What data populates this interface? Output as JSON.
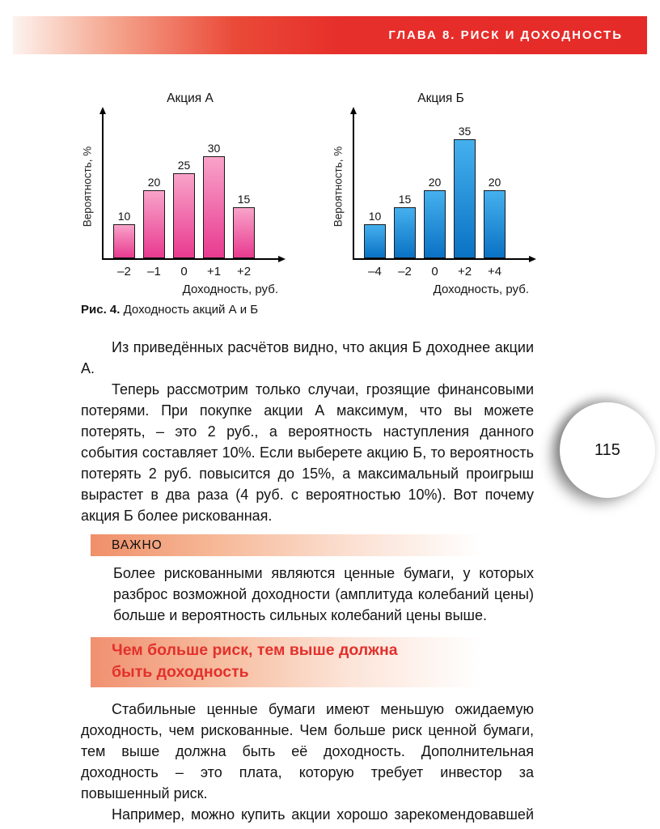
{
  "header": {
    "text": "ГЛАВА 8. РИСК И ДОХОДНОСТЬ"
  },
  "page_number": "115",
  "figure": {
    "caption_label": "Рис. 4.",
    "caption_text": "Доходность акций А и Б"
  },
  "chart_data": [
    {
      "type": "bar",
      "title": "Акция А",
      "categories": [
        "–2",
        "–1",
        "0",
        "+1",
        "+2"
      ],
      "values": [
        10,
        20,
        25,
        30,
        15
      ],
      "ylabel": "Вероятность, %",
      "xlabel": "Доходность, руб.",
      "ylim": [
        0,
        40
      ],
      "grid": false,
      "value_labels": true,
      "bar_top": "#f8a3c9",
      "bar_bottom": "#e93a90"
    },
    {
      "type": "bar",
      "title": "Акция Б",
      "categories": [
        "–4",
        "–2",
        "0",
        "+2",
        "+4"
      ],
      "values": [
        10,
        15,
        20,
        35,
        20
      ],
      "ylabel": "Вероятность, %",
      "xlabel": "Доходность, руб.",
      "ylim": [
        0,
        40
      ],
      "grid": false,
      "value_labels": true,
      "bar_top": "#45b0ee",
      "bar_bottom": "#0a72c4"
    }
  ],
  "paragraphs": {
    "p1": "Из приведённых расчётов видно, что акция Б доходнее акции А.",
    "p2": "Теперь рассмотрим только случаи, грозящие финансовыми потерями. При покупке акции А максимум, что вы можете потерять, – это 2 руб., а вероятность наступления данного события составляет 10%. Если выберете акцию Б, то вероятность потерять 2 руб. повысится до 15%, а максимальный проигрыш вырастет в два раза (4 руб. с вероятностью 10%). Вот почему акция Б более рискованная.",
    "p3": "Стабильные ценные бумаги имеют меньшую ожидаемую доходность, чем рискованные. Чем больше риск ценной бумаги, тем выше должна быть её доходность. Дополнительная доходность – это плата, которую требует инвестор за повышенный риск.",
    "p4": "Например, можно купить акции хорошо зарекомендовавшей себя крупной компании, пользующейся поддержкой государства"
  },
  "important": {
    "label": "ВАЖНО",
    "text": "Более рискованными являются ценные бумаги, у которых разброс возможной доходности (амплитуда колебаний цены) больше и вероятность сильных колебаний цены выше."
  },
  "section": {
    "title": "Чем больше риск, тем выше должна быть доходность"
  },
  "colors": {
    "accent_red": "#e62e2a",
    "heading_red": "#e2312c",
    "bar_pink": "#ee3e92",
    "bar_blue": "#0e86d6"
  }
}
